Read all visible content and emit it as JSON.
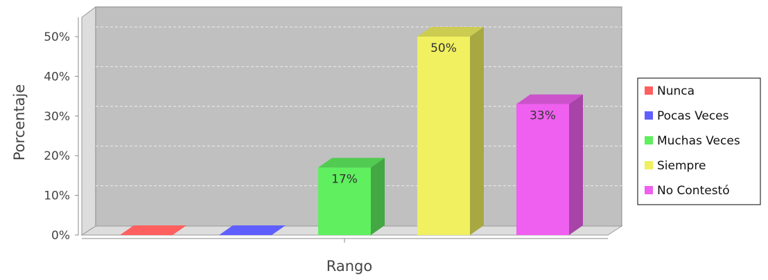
{
  "chart_data": {
    "type": "bar",
    "title": "",
    "xlabel": "Rango",
    "ylabel": "Porcentaje",
    "ylim": [
      0,
      50
    ],
    "yticks": [
      "0%",
      "10%",
      "20%",
      "30%",
      "40%",
      "50%"
    ],
    "grid": true,
    "legend_position": "right",
    "categories": [
      "Nunca",
      "Pocas Veces",
      "Muchas Veces",
      "Siempre",
      "No Contestó"
    ],
    "values": [
      0,
      0,
      17,
      50,
      33
    ],
    "data_labels": [
      "",
      "",
      "17%",
      "50%",
      "33%"
    ],
    "colors": [
      "#ff5f5f",
      "#5f5fff",
      "#5fef5f",
      "#f0f060",
      "#f060f0"
    ],
    "series": [
      {
        "name": "Nunca",
        "color": "#ff5f5f"
      },
      {
        "name": "Pocas Veces",
        "color": "#5f5fff"
      },
      {
        "name": "Muchas Veces",
        "color": "#5fef5f"
      },
      {
        "name": "Siempre",
        "color": "#f0f060"
      },
      {
        "name": "No Contestó",
        "color": "#f060f0"
      }
    ]
  }
}
